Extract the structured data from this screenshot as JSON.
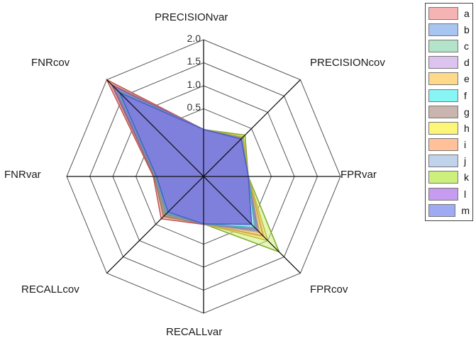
{
  "chart_data": {
    "type": "radar",
    "title": "",
    "axes": [
      "PRECISIONvar",
      "PRECISIONcov",
      "FPRvar",
      "FPRcov",
      "RECALLvar",
      "RECALLcov",
      "FNRvar",
      "FNRcov"
    ],
    "radial_ticks": [
      "0.5",
      "1.0",
      "1.5",
      "2.0"
    ],
    "rmin": -0.97,
    "rmax": 2.0,
    "legend_position": "right",
    "series": [
      {
        "name": "a",
        "color": "#f5b3b3",
        "edge": "#c0504d",
        "values": [
          0.05,
          0.22,
          0.0,
          0.6,
          0.07,
          0.33,
          0.12,
          2.0
        ]
      },
      {
        "name": "b",
        "color": "#a8c4f0",
        "edge": "#4f6fc4",
        "values": [
          0.05,
          0.18,
          0.0,
          0.5,
          0.06,
          0.12,
          0.05,
          1.6
        ]
      },
      {
        "name": "c",
        "color": "#b3e3c8",
        "edge": "#7aa58a",
        "values": [
          0.05,
          0.2,
          0.0,
          0.7,
          0.06,
          0.2,
          0.08,
          1.7
        ]
      },
      {
        "name": "d",
        "color": "#ddc3f0",
        "edge": "#9c7ab8",
        "values": [
          0.05,
          0.2,
          0.0,
          0.65,
          0.06,
          0.18,
          0.07,
          1.7
        ]
      },
      {
        "name": "e",
        "color": "#ffd98a",
        "edge": "#c9a34e",
        "values": [
          0.05,
          0.22,
          0.0,
          0.85,
          0.06,
          0.22,
          0.08,
          1.75
        ]
      },
      {
        "name": "f",
        "color": "#88f5f5",
        "edge": "#3fb8b8",
        "values": [
          0.05,
          0.19,
          0.0,
          0.6,
          0.06,
          0.15,
          0.06,
          1.65
        ]
      },
      {
        "name": "g",
        "color": "#c9b4ae",
        "edge": "#8f7770",
        "values": [
          0.05,
          0.21,
          0.0,
          0.75,
          0.06,
          0.25,
          0.1,
          1.85
        ]
      },
      {
        "name": "h",
        "color": "#fbf578",
        "edge": "#c2bb3a",
        "values": [
          0.05,
          0.25,
          0.0,
          1.0,
          0.06,
          0.22,
          0.08,
          1.75
        ]
      },
      {
        "name": "i",
        "color": "#ffc09a",
        "edge": "#d18a5c",
        "values": [
          0.05,
          0.23,
          0.0,
          0.9,
          0.06,
          0.28,
          0.1,
          1.9
        ]
      },
      {
        "name": "j",
        "color": "#c0d3ea",
        "edge": "#7a93b5",
        "values": [
          0.05,
          0.19,
          0.0,
          0.7,
          0.06,
          0.16,
          0.06,
          1.7
        ]
      },
      {
        "name": "k",
        "color": "#cdf07c",
        "edge": "#7fa828",
        "values": [
          0.05,
          0.3,
          0.0,
          1.35,
          0.06,
          0.2,
          0.07,
          1.75
        ]
      },
      {
        "name": "l",
        "color": "#c79bf0",
        "edge": "#8d5cc0",
        "values": [
          0.05,
          0.2,
          0.0,
          0.65,
          0.06,
          0.2,
          0.08,
          1.8
        ]
      },
      {
        "name": "m",
        "color": "#9eaaf2",
        "edge": "#5362c8",
        "values": [
          0.05,
          0.18,
          0.0,
          0.5,
          0.06,
          0.12,
          0.05,
          1.6
        ]
      }
    ]
  }
}
